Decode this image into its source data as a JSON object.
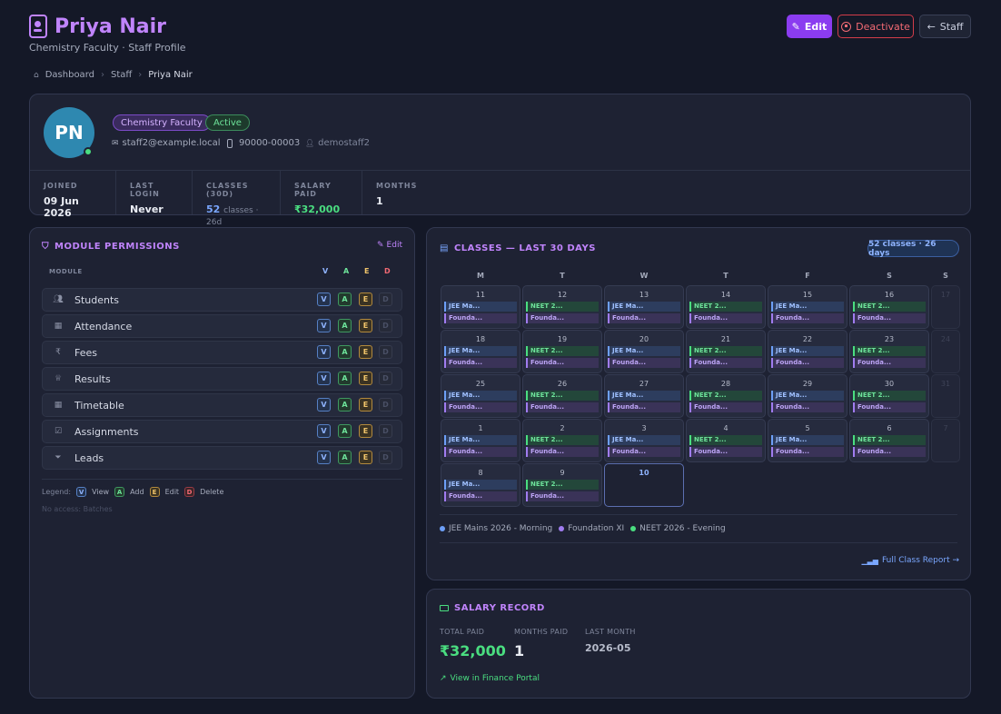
{
  "header": {
    "title": "Priya Nair",
    "subtitle": "Chemistry Faculty · Staff Profile",
    "edit_label": "Edit",
    "deactivate_label": "Deactivate",
    "staff_label": "Staff"
  },
  "breadcrumb": [
    "Dashboard",
    "Staff",
    "Priya Nair"
  ],
  "profile": {
    "initials": "PN",
    "role_badge": "Chemistry Faculty",
    "status_badge": "Active",
    "email": "staff2@example.local",
    "phone": "90000-00003",
    "username": "demostaff2",
    "stats": [
      {
        "label": "JOINED",
        "value": "09 Jun 2026"
      },
      {
        "label": "LAST LOGIN",
        "value": "Never"
      },
      {
        "label": "CLASSES (30D)",
        "value": "52",
        "suffix": "classes · 26d"
      },
      {
        "label": "SALARY PAID",
        "value": "₹32,000"
      },
      {
        "label": "MONTHS",
        "value": "1"
      }
    ]
  },
  "permissions": {
    "title": "MODULE PERMISSIONS",
    "edit_label": "Edit",
    "module_header": "MODULE",
    "columns": [
      "V",
      "A",
      "E",
      "D"
    ],
    "rows": [
      {
        "name": "Students",
        "icon": "users-icon"
      },
      {
        "name": "Attendance",
        "icon": "calendar-icon"
      },
      {
        "name": "Fees",
        "icon": "rupee-icon"
      },
      {
        "name": "Results",
        "icon": "trophy-icon"
      },
      {
        "name": "Timetable",
        "icon": "calendar-icon"
      },
      {
        "name": "Assignments",
        "icon": "checkbox-icon"
      },
      {
        "name": "Leads",
        "icon": "funnel-icon"
      }
    ],
    "legend_label": "Legend:",
    "legend": [
      {
        "key": "V",
        "text": "View"
      },
      {
        "key": "A",
        "text": "Add"
      },
      {
        "key": "E",
        "text": "Edit"
      },
      {
        "key": "D",
        "text": "Delete"
      }
    ],
    "no_access": "No access: Batches"
  },
  "calendar": {
    "title": "CLASSES — LAST 30 DAYS",
    "summary_badge": "52 classes · 26 days",
    "weekdays": [
      "M",
      "T",
      "W",
      "T",
      "F",
      "S",
      "S"
    ],
    "weeks": [
      [
        "11",
        "12",
        "13",
        "14",
        "15",
        "16",
        "17"
      ],
      [
        "18",
        "19",
        "20",
        "21",
        "22",
        "23",
        "24"
      ],
      [
        "25",
        "26",
        "27",
        "28",
        "29",
        "30",
        "31"
      ],
      [
        "1",
        "2",
        "3",
        "4",
        "5",
        "6",
        "7"
      ],
      [
        "8",
        "9",
        "10"
      ]
    ],
    "event_labels": {
      "jee": "JEE Ma...",
      "neet": "NEET 2...",
      "foundation": "Founda..."
    },
    "legend": [
      {
        "name": "JEE Mains 2026 - Morning",
        "color": "#6d9ff7"
      },
      {
        "name": "Foundation XI",
        "color": "#a07cf0"
      },
      {
        "name": "NEET 2026 - Evening",
        "color": "#4ade80"
      }
    ],
    "report_link": "Full Class Report →"
  },
  "salary": {
    "title": "SALARY RECORD",
    "total_label": "TOTAL PAID",
    "total_value": "₹32,000",
    "months_label": "MONTHS PAID",
    "months_value": "1",
    "last_label": "LAST MONTH",
    "last_value": "2026-05",
    "finance_link": "View in Finance Portal"
  }
}
